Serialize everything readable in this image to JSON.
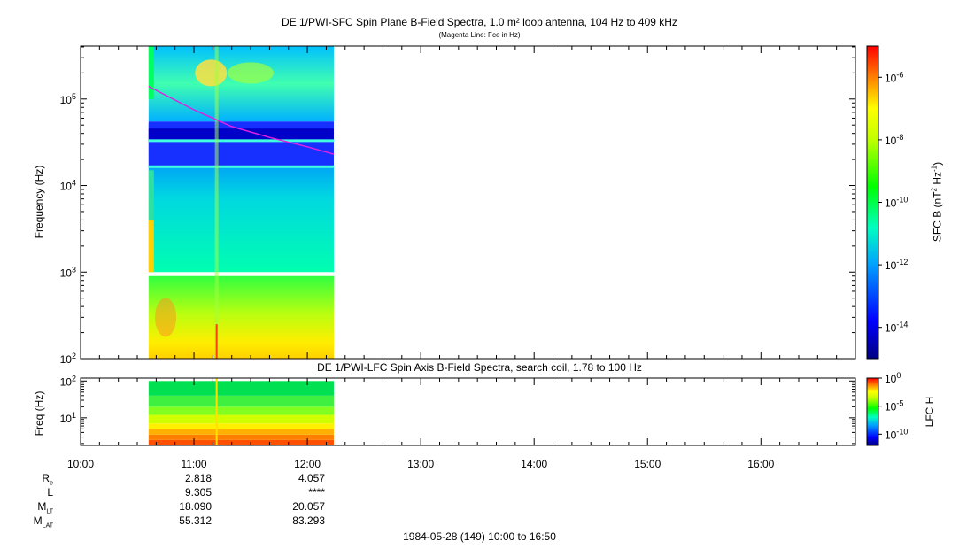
{
  "chart_data": [
    {
      "type": "heatmap",
      "title": "DE 1/PWI-SFC  Spin Plane B-Field Spectra, 1.0 m² loop antenna, 104 Hz to 409 kHz",
      "subtitle": "(Magenta Line: Fce in Hz)",
      "ylabel": "Frequency (Hz)",
      "y_scale": "log",
      "ylim": [
        100,
        409000
      ],
      "y_ticks": [
        {
          "base": "10",
          "exp": "2"
        },
        {
          "base": "10",
          "exp": "3"
        },
        {
          "base": "10",
          "exp": "4"
        },
        {
          "base": "10",
          "exp": "5"
        }
      ],
      "data_time_range": [
        "10:36",
        "12:14"
      ],
      "colorbar": {
        "label_main": "SFC B (nT",
        "label_exp1": "2",
        "label_mid": " Hz",
        "label_exp2": "-1",
        "label_end": ")",
        "scale": "log",
        "range": [
          1e-15,
          1e-05
        ],
        "ticks": [
          {
            "base": "10",
            "exp": "-6"
          },
          {
            "base": "10",
            "exp": "-8"
          },
          {
            "base": "10",
            "exp": "-10"
          },
          {
            "base": "10",
            "exp": "-12"
          },
          {
            "base": "10",
            "exp": "-14"
          }
        ]
      },
      "fce_line": {
        "color": "#e020e0",
        "time": [
          "10:36",
          "11:00",
          "11:20",
          "11:40",
          "12:00",
          "12:14"
        ],
        "freq_hz": [
          140000,
          75000,
          48000,
          36000,
          28000,
          23000
        ]
      }
    },
    {
      "type": "heatmap",
      "title": "DE 1/PWI-LFC  Spin Axis B-Field Spectra, search coil, 1.78 to 100 Hz",
      "ylabel": "Freq (Hz)",
      "y_scale": "log",
      "ylim": [
        1.78,
        120
      ],
      "y_ticks": [
        {
          "base": "10",
          "exp": "1"
        },
        {
          "base": "10",
          "exp": "2"
        }
      ],
      "data_time_range": [
        "10:36",
        "12:14"
      ],
      "colorbar": {
        "label": "LFC H",
        "scale": "log",
        "range": [
          1e-12,
          1
        ],
        "ticks": [
          {
            "base": "10",
            "exp": "0"
          },
          {
            "base": "10",
            "exp": "-5"
          },
          {
            "base": "10",
            "exp": "-10"
          }
        ]
      }
    }
  ],
  "x_axis": {
    "range": [
      "10:00",
      "16:50"
    ],
    "ticks": [
      "10:00",
      "11:00",
      "12:00",
      "13:00",
      "14:00",
      "15:00",
      "16:00"
    ]
  },
  "ephemeris": {
    "rows": [
      {
        "label": "R",
        "sub": "e",
        "values": [
          "2.818",
          "4.057"
        ]
      },
      {
        "label": "L",
        "sub": "",
        "values": [
          "9.305",
          "****"
        ]
      },
      {
        "label": "M",
        "sub": "LT",
        "values": [
          "18.090",
          "20.057"
        ]
      },
      {
        "label": "M",
        "sub": "LAT",
        "values": [
          "55.312",
          "83.293"
        ]
      }
    ]
  },
  "footer": "1984-05-28 (149) 10:00 to 16:50"
}
